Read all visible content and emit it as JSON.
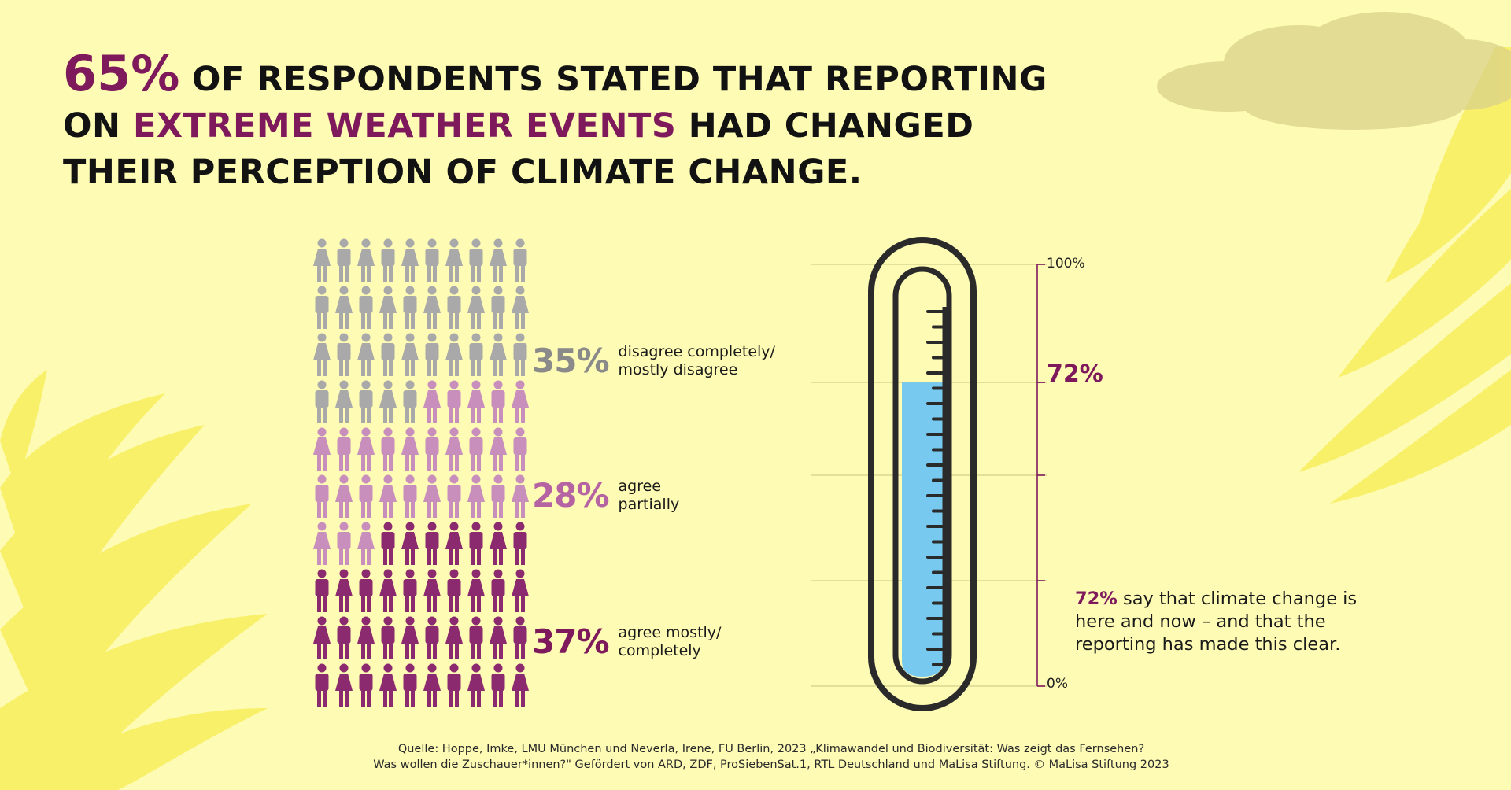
{
  "headline": {
    "big_pct": "65%",
    "part1": " OF RESPONDENTS STATED THAT REPORTING",
    "part2": "ON ",
    "accent": "EXTREME WEATHER EVENTS",
    "part3": " HAD CHANGED",
    "part4": "THEIR PERCEPTION OF CLIMATE CHANGE."
  },
  "colors": {
    "background": "#fdfbb4",
    "disagree": "#a9a9a9",
    "partial": "#c88fbd",
    "agree": "#8b2a6e",
    "accent": "#7e1a5c",
    "liquid": "#78c9ef"
  },
  "chart_data": [
    {
      "type": "pictogram",
      "grid": {
        "columns": 10,
        "rows": 10
      },
      "series": [
        {
          "name": "disagree completely/ mostly disagree",
          "value": 35,
          "label": "35%",
          "text_line1": "disagree completely/",
          "text_line2": "mostly disagree"
        },
        {
          "name": "agree partially",
          "value": 28,
          "label": "28%",
          "text_line1": "agree",
          "text_line2": "partially"
        },
        {
          "name": "agree mostly/ completely",
          "value": 37,
          "label": "37%",
          "text_line1": "agree mostly/",
          "text_line2": "completely"
        }
      ]
    },
    {
      "type": "thermometer",
      "value": 72,
      "value_label": "72%",
      "axis_top": "100%",
      "axis_bottom": "0%",
      "ylim": [
        0,
        100
      ]
    }
  ],
  "note": {
    "highlight": "72%",
    "text": " say that climate change is here and now – and that the reporting has made this clear."
  },
  "source": {
    "line1": "Quelle: Hoppe, Imke, LMU München und Neverla, Irene, FU Berlin, 2023 „Klimawandel und Biodiversität: Was zeigt das Fernsehen?",
    "line2": "Was wollen die Zuschauer*innen?\" Gefördert von ARD, ZDF, ProSiebenSat.1, RTL Deutschland und MaLisa Stiftung. © MaLisa Stiftung 2023"
  }
}
